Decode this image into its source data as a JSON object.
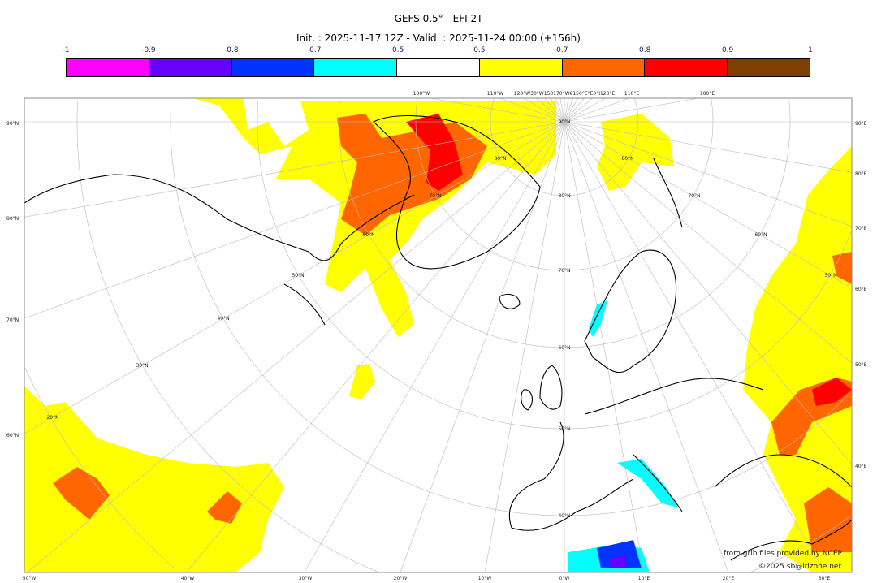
{
  "title": "GEFS 0.5° - EFI 2T",
  "subtitle": "Init. : 2025-11-17 12Z - Valid. : 2025-11-24 00:00 (+156h)",
  "colorbar": {
    "labels": [
      "-1",
      "-0.9",
      "-0.8",
      "-0.7",
      "-0.5",
      "0.5",
      "0.7",
      "0.8",
      "0.9",
      "1"
    ],
    "colors": [
      "#ff00ff",
      "#6600ff",
      "#0033ff",
      "#00ffff",
      "#ffffff",
      "#ffff00",
      "#ff6600",
      "#ff0000",
      "#7f3f00"
    ]
  },
  "axes": {
    "left": [
      "90°N",
      "80°N",
      "70°N",
      "60°N"
    ],
    "right": [
      "90°E",
      "80°E",
      "70°E",
      "60°E",
      "50°E",
      "40°E"
    ],
    "bottom": [
      "50°W",
      "40°W",
      "30°W",
      "20°W",
      "10°W",
      "0°W",
      "10°E",
      "20°E",
      "30°E"
    ],
    "top": [
      "100°W",
      "110°W",
      "120°W30°W150170°W€150°E°E0°I120°E",
      "110°E",
      "100°E"
    ],
    "inner": [
      "90°N",
      "80°N",
      "80°N",
      "80°N",
      "70°N",
      "70°N",
      "70°N",
      "60°N",
      "60°N",
      "60°N",
      "50°N",
      "50°N",
      "50°N",
      "40°N",
      "40°N",
      "30°N",
      "20°N"
    ]
  },
  "credits": {
    "line1": "from grib files provided by NCEP",
    "line2": "©2025 sb@irizone.net"
  }
}
